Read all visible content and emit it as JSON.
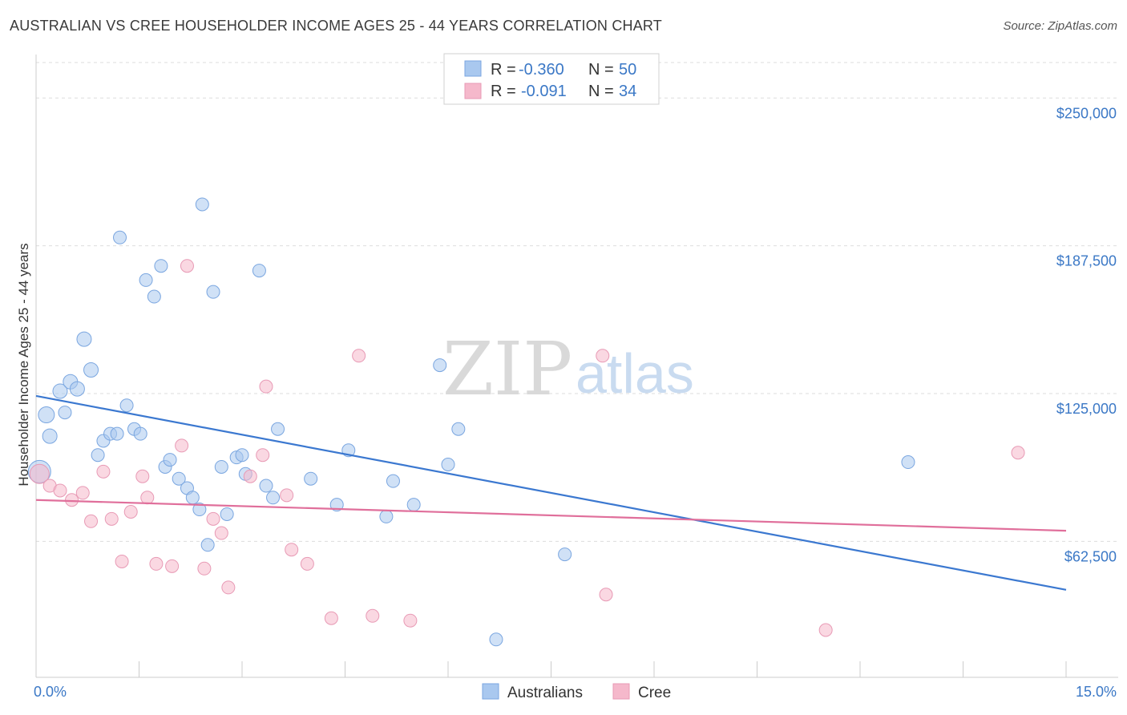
{
  "header": {
    "title": "AUSTRALIAN VS CREE HOUSEHOLDER INCOME AGES 25 - 44 YEARS CORRELATION CHART",
    "source": "Source: ZipAtlas.com"
  },
  "watermark": {
    "part1": "ZIP",
    "part2": "atlas"
  },
  "legend": {
    "items": [
      {
        "r_label": "R = ",
        "r_value": "-0.360",
        "n_label": "N = ",
        "n_value": "50",
        "color": "#a9c8ef"
      },
      {
        "r_label": "R = ",
        "r_value": "-0.091",
        "n_label": "N = ",
        "n_value": "34",
        "color": "#f5b8cb"
      }
    ]
  },
  "bottom_legend": {
    "items": [
      "Australians",
      "Cree"
    ]
  },
  "chart_data": {
    "type": "scatter",
    "title": "AUSTRALIAN VS CREE HOUSEHOLDER INCOME AGES 25 - 44 YEARS CORRELATION CHART",
    "ylabel": "Householder Income Ages 25 - 44 years",
    "xlabel": "",
    "xlim": [
      0,
      15
    ],
    "ylim": [
      5000,
      265000
    ],
    "x_tick_labels": [
      "0.0%",
      "15.0%"
    ],
    "y_ticks": [
      62500,
      125000,
      187500,
      250000
    ],
    "y_tick_labels": [
      "$62,500",
      "$125,000",
      "$187,500",
      "$250,000"
    ],
    "grid": true,
    "legend_position": "top-center",
    "series": [
      {
        "name": "Australians",
        "color": "#3b78d0",
        "fill": "#a9c8ef",
        "r": -0.36,
        "n": 50,
        "trend": {
          "x": [
            0,
            15
          ],
          "y": [
            124000,
            42000
          ]
        },
        "points": [
          [
            0.05,
            92000,
            14
          ],
          [
            0.15,
            116000,
            10
          ],
          [
            0.2,
            107000,
            9
          ],
          [
            0.35,
            126000,
            9
          ],
          [
            0.42,
            117000,
            8
          ],
          [
            0.5,
            130000,
            9
          ],
          [
            0.6,
            127000,
            9
          ],
          [
            0.7,
            148000,
            9
          ],
          [
            0.8,
            135000,
            9
          ],
          [
            0.9,
            99000,
            8
          ],
          [
            0.98,
            105000,
            8
          ],
          [
            1.08,
            108000,
            8
          ],
          [
            1.18,
            108000,
            8
          ],
          [
            1.22,
            191000,
            8
          ],
          [
            1.32,
            120000,
            8
          ],
          [
            1.43,
            110000,
            8
          ],
          [
            1.52,
            108000,
            8
          ],
          [
            1.6,
            173000,
            8
          ],
          [
            1.72,
            166000,
            8
          ],
          [
            1.82,
            179000,
            8
          ],
          [
            1.88,
            94000,
            8
          ],
          [
            1.95,
            97000,
            8
          ],
          [
            2.08,
            89000,
            8
          ],
          [
            2.2,
            85000,
            8
          ],
          [
            2.28,
            81000,
            8
          ],
          [
            2.38,
            76000,
            8
          ],
          [
            2.42,
            205000,
            8
          ],
          [
            2.5,
            61000,
            8
          ],
          [
            2.58,
            168000,
            8
          ],
          [
            2.7,
            94000,
            8
          ],
          [
            2.78,
            74000,
            8
          ],
          [
            2.92,
            98000,
            8
          ],
          [
            3.0,
            99000,
            8
          ],
          [
            3.05,
            91000,
            8
          ],
          [
            3.25,
            177000,
            8
          ],
          [
            3.35,
            86000,
            8
          ],
          [
            3.45,
            81000,
            8
          ],
          [
            3.52,
            110000,
            8
          ],
          [
            4.0,
            89000,
            8
          ],
          [
            4.38,
            78000,
            8
          ],
          [
            4.55,
            101000,
            8
          ],
          [
            5.1,
            73000,
            8
          ],
          [
            5.2,
            88000,
            8
          ],
          [
            5.5,
            78000,
            8
          ],
          [
            5.88,
            137000,
            8
          ],
          [
            6.0,
            95000,
            8
          ],
          [
            6.15,
            110000,
            8
          ],
          [
            6.7,
            21000,
            8
          ],
          [
            7.7,
            57000,
            8
          ],
          [
            12.7,
            96000,
            8
          ]
        ]
      },
      {
        "name": "Cree",
        "color": "#e06f9b",
        "fill": "#f5b8cb",
        "r": -0.091,
        "n": 34,
        "trend": {
          "x": [
            0,
            15
          ],
          "y": [
            80000,
            67000
          ]
        },
        "points": [
          [
            0.05,
            91000,
            12
          ],
          [
            0.2,
            86000,
            8
          ],
          [
            0.35,
            84000,
            8
          ],
          [
            0.52,
            80000,
            8
          ],
          [
            0.68,
            83000,
            8
          ],
          [
            0.8,
            71000,
            8
          ],
          [
            0.98,
            92000,
            8
          ],
          [
            1.1,
            72000,
            8
          ],
          [
            1.25,
            54000,
            8
          ],
          [
            1.38,
            75000,
            8
          ],
          [
            1.55,
            90000,
            8
          ],
          [
            1.62,
            81000,
            8
          ],
          [
            1.75,
            53000,
            8
          ],
          [
            1.98,
            52000,
            8
          ],
          [
            2.12,
            103000,
            8
          ],
          [
            2.2,
            179000,
            8
          ],
          [
            2.45,
            51000,
            8
          ],
          [
            2.58,
            72000,
            8
          ],
          [
            2.7,
            66000,
            8
          ],
          [
            2.8,
            43000,
            8
          ],
          [
            3.12,
            90000,
            8
          ],
          [
            3.3,
            99000,
            8
          ],
          [
            3.35,
            128000,
            8
          ],
          [
            3.65,
            82000,
            8
          ],
          [
            3.72,
            59000,
            8
          ],
          [
            3.95,
            53000,
            8
          ],
          [
            4.3,
            30000,
            8
          ],
          [
            4.7,
            141000,
            8
          ],
          [
            4.9,
            31000,
            8
          ],
          [
            5.45,
            29000,
            8
          ],
          [
            8.25,
            141000,
            8
          ],
          [
            8.3,
            40000,
            8
          ],
          [
            11.5,
            25000,
            8
          ],
          [
            14.3,
            100000,
            8
          ]
        ]
      }
    ]
  }
}
